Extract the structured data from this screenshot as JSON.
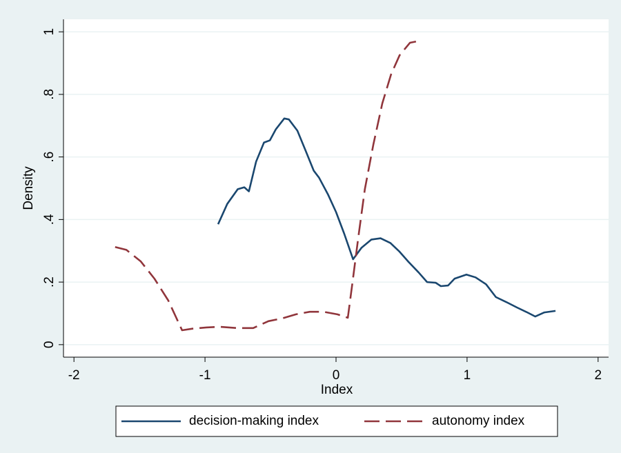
{
  "chart_data": {
    "type": "line",
    "x_label": "Index",
    "y_label": "Density",
    "xlim": [
      -2.08,
      2.08
    ],
    "xticks": [
      -2,
      -1,
      0,
      1,
      2
    ],
    "ylim": [
      -0.04,
      1.04
    ],
    "yticks": [
      0,
      {
        "value": 0.2,
        "label": ".2"
      },
      {
        "value": 0.4,
        "label": ".4"
      },
      {
        "value": 0.6,
        "label": ".6"
      },
      {
        "value": 0.8,
        "label": ".8"
      },
      1
    ],
    "grid": true,
    "legend": "bottom",
    "series": [
      {
        "name": "decision-making index",
        "color": "#1a476f",
        "dash": "solid",
        "x": [
          -0.9,
          -0.83,
          -0.75,
          -0.7,
          -0.665,
          -0.61,
          -0.55,
          -0.505,
          -0.46,
          -0.395,
          -0.36,
          -0.295,
          -0.23,
          -0.17,
          -0.13,
          -0.06,
          0,
          0.063,
          0.13,
          0.195,
          0.27,
          0.34,
          0.415,
          0.485,
          0.55,
          0.63,
          0.695,
          0.76,
          0.8,
          0.855,
          0.905,
          0.995,
          1.065,
          1.145,
          1.22,
          1.3,
          1.38,
          1.46,
          1.52,
          1.59,
          1.675
        ],
        "values": [
          0.385,
          0.45,
          0.497,
          0.503,
          0.49,
          0.585,
          0.646,
          0.653,
          0.688,
          0.723,
          0.72,
          0.684,
          0.618,
          0.556,
          0.534,
          0.479,
          0.424,
          0.354,
          0.273,
          0.31,
          0.336,
          0.34,
          0.325,
          0.297,
          0.266,
          0.231,
          0.2,
          0.198,
          0.187,
          0.189,
          0.211,
          0.224,
          0.215,
          0.193,
          0.152,
          0.136,
          0.119,
          0.103,
          0.09,
          0.103,
          0.108
        ]
      },
      {
        "name": "autonomy index",
        "color": "#90353b",
        "dash": "dashed",
        "x": [
          -1.686,
          -1.6,
          -1.49,
          -1.386,
          -1.28,
          -1.175,
          -1.096,
          -0.99,
          -0.885,
          -0.754,
          -0.632,
          -0.516,
          -0.41,
          -0.306,
          -0.2,
          -0.095,
          0.01,
          0.09,
          0.126,
          0.17,
          0.22,
          0.285,
          0.353,
          0.42,
          0.485,
          0.564,
          0.61
        ],
        "values": [
          0.312,
          0.303,
          0.266,
          0.211,
          0.141,
          0.046,
          0.051,
          0.055,
          0.057,
          0.053,
          0.053,
          0.075,
          0.084,
          0.097,
          0.105,
          0.105,
          0.097,
          0.086,
          0.2,
          0.343,
          0.497,
          0.64,
          0.771,
          0.864,
          0.925,
          0.965,
          0.969
        ]
      }
    ]
  }
}
